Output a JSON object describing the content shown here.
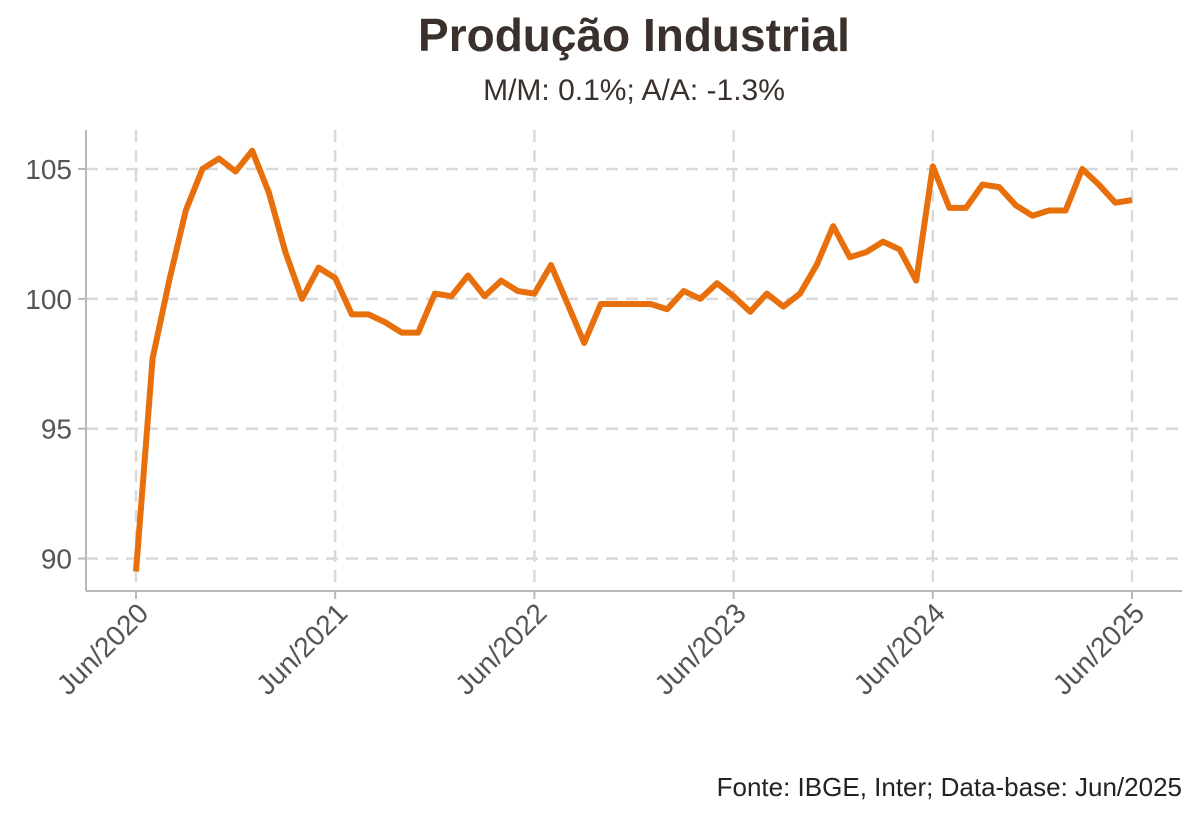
{
  "chart_data": {
    "type": "line",
    "title": "Produção Industrial",
    "subtitle": "M/M: 0.1%; A/A: -1.3%",
    "source": "Fonte: IBGE, Inter; Data-base: Jun/2025",
    "xlabel": "",
    "ylabel": "",
    "ylim": [
      88.75,
      106.5
    ],
    "y_ticks": [
      90,
      95,
      100,
      105
    ],
    "x_tick_labels": [
      "Jun/2020",
      "Jun/2021",
      "Jun/2022",
      "Jun/2023",
      "Jun/2024",
      "Jun/2025"
    ],
    "grid": true,
    "series": [
      {
        "color": "#e8700c",
        "x": [
          "Jun/2020",
          "Jul/2020",
          "Aug/2020",
          "Sep/2020",
          "Oct/2020",
          "Nov/2020",
          "Dec/2020",
          "Jan/2021",
          "Feb/2021",
          "Mar/2021",
          "Apr/2021",
          "May/2021",
          "Jun/2021",
          "Jul/2021",
          "Aug/2021",
          "Sep/2021",
          "Oct/2021",
          "Nov/2021",
          "Dec/2021",
          "Jan/2022",
          "Feb/2022",
          "Mar/2022",
          "Apr/2022",
          "May/2022",
          "Jun/2022",
          "Jul/2022",
          "Aug/2022",
          "Sep/2022",
          "Oct/2022",
          "Nov/2022",
          "Dec/2022",
          "Jan/2023",
          "Feb/2023",
          "Mar/2023",
          "Apr/2023",
          "May/2023",
          "Jun/2023",
          "Jul/2023",
          "Aug/2023",
          "Sep/2023",
          "Oct/2023",
          "Nov/2023",
          "Dec/2023",
          "Jan/2024",
          "Feb/2024",
          "Mar/2024",
          "Apr/2024",
          "May/2024",
          "Jun/2024",
          "Jul/2024",
          "Aug/2024",
          "Sep/2024",
          "Oct/2024",
          "Nov/2024",
          "Dec/2024",
          "Jan/2025",
          "Feb/2025",
          "Mar/2025",
          "Apr/2025",
          "May/2025",
          "Jun/2025"
        ],
        "values": [
          89.5,
          97.7,
          100.7,
          103.4,
          105.0,
          105.4,
          104.9,
          105.7,
          104.1,
          101.8,
          100.0,
          101.2,
          100.8,
          99.4,
          99.4,
          99.1,
          98.7,
          98.7,
          100.2,
          100.1,
          100.9,
          100.1,
          100.7,
          100.3,
          100.2,
          101.3,
          99.8,
          98.3,
          99.8,
          99.8,
          99.8,
          99.8,
          99.6,
          100.3,
          100.0,
          100.6,
          100.1,
          99.5,
          100.2,
          99.7,
          100.2,
          101.3,
          102.8,
          101.6,
          101.8,
          102.2,
          101.9,
          100.7,
          105.1,
          103.5,
          103.5,
          104.4,
          104.3,
          103.6,
          103.2,
          103.4,
          103.4,
          105.0,
          104.4,
          103.7,
          103.8
        ]
      }
    ]
  }
}
